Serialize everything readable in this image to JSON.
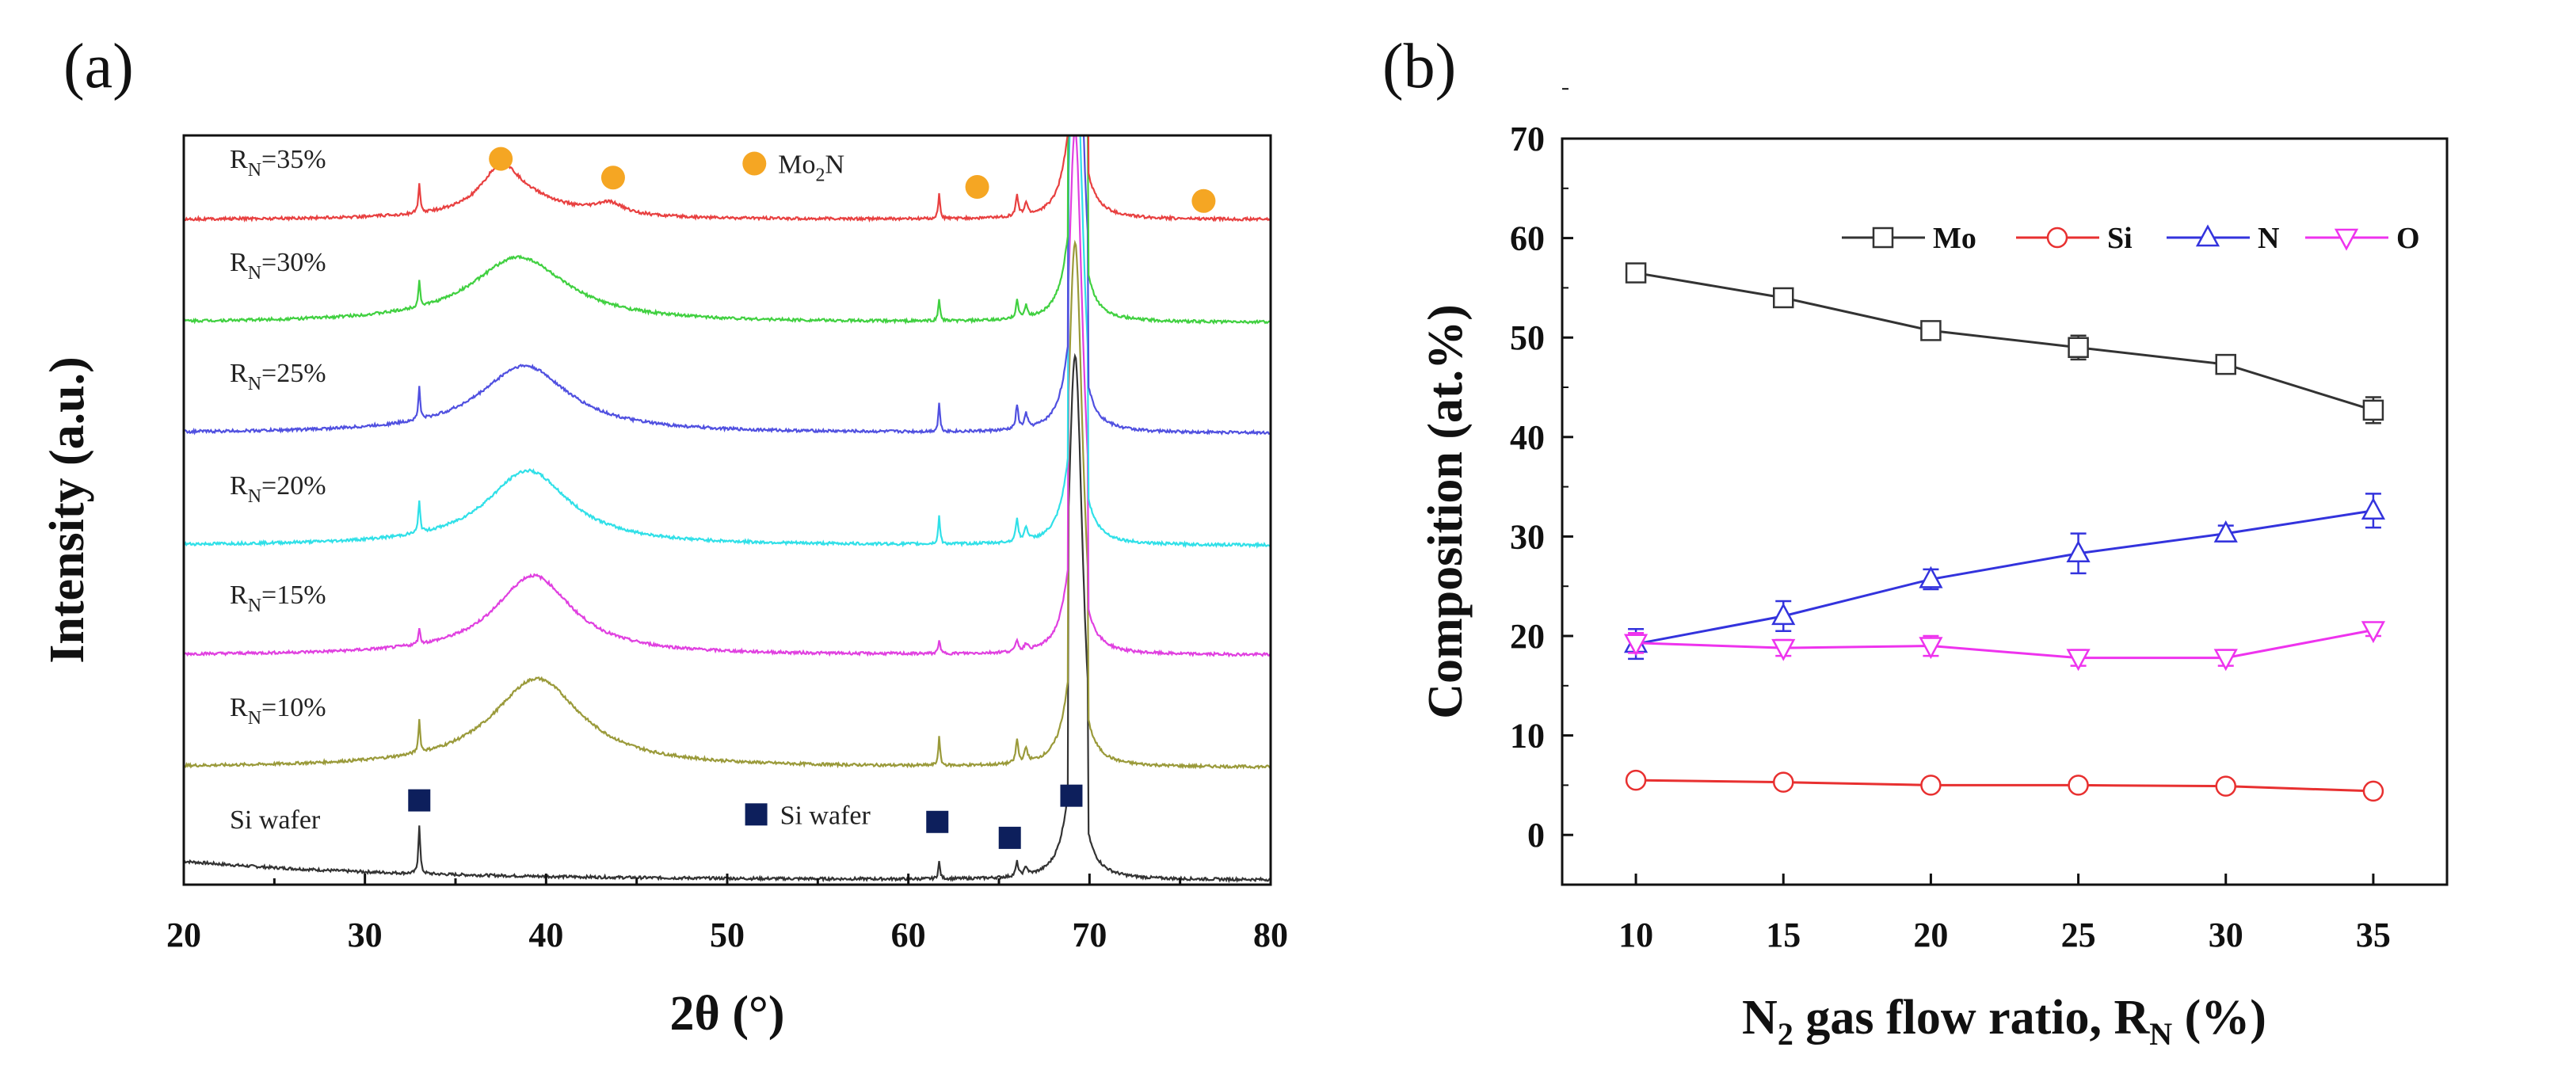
{
  "chart_data": [
    {
      "type": "line",
      "panel_label": "(a)",
      "xlabel": "2θ (°)",
      "ylabel": "Intensity (a.u.)",
      "xlim": [
        20,
        80
      ],
      "xticks": [
        "20",
        "30",
        "40",
        "50",
        "60",
        "70",
        "80"
      ],
      "xtick_values": [
        20,
        30,
        40,
        50,
        60,
        70,
        80
      ],
      "ylim": [
        0,
        8
      ],
      "substrate_peaks_2theta": [
        33.0,
        61.7,
        66.0,
        66.5,
        69.2
      ],
      "series": [
        {
          "name": "Si wafer",
          "label_main": "Si wafer",
          "label_sub": "",
          "label_tail": "",
          "color": "#333333",
          "offset": 0.05,
          "broad_peaks": [],
          "substrate_peak_scale": 0.6
        },
        {
          "name": "RN=10%",
          "label_main": "R",
          "label_sub": "N",
          "label_tail": "=10%",
          "color": "#9a9a3a",
          "offset": 1.25,
          "broad_peaks": [
            {
              "center": 39.5,
              "height": 0.95,
              "width": 3.0
            }
          ],
          "substrate_peak_scale": 1
        },
        {
          "name": "RN=15%",
          "label_main": "R",
          "label_sub": "N",
          "label_tail": "=15%",
          "color": "#e040e0",
          "offset": 2.45,
          "broad_peaks": [
            {
              "center": 39.3,
              "height": 0.85,
              "width": 2.6
            }
          ],
          "substrate_peak_scale": 0.5
        },
        {
          "name": "RN=20%",
          "label_main": "R",
          "label_sub": "N",
          "label_tail": "=20%",
          "color": "#30e0e8",
          "offset": 3.62,
          "broad_peaks": [
            {
              "center": 39.0,
              "height": 0.8,
              "width": 2.8
            }
          ],
          "substrate_peak_scale": 1
        },
        {
          "name": "RN=25%",
          "label_main": "R",
          "label_sub": "N",
          "label_tail": "=25%",
          "color": "#5050e0",
          "offset": 4.82,
          "broad_peaks": [
            {
              "center": 38.8,
              "height": 0.72,
              "width": 3.0
            }
          ],
          "substrate_peak_scale": 1
        },
        {
          "name": "RN=30%",
          "label_main": "R",
          "label_sub": "N",
          "label_tail": "=30%",
          "color": "#40d040",
          "offset": 6.0,
          "broad_peaks": [
            {
              "center": 38.5,
              "height": 0.7,
              "width": 3.2
            }
          ],
          "substrate_peak_scale": 0.8
        },
        {
          "name": "RN=35%",
          "label_main": "R",
          "label_sub": "N",
          "label_tail": "=35%",
          "color": "#e84040",
          "offset": 7.1,
          "broad_peaks": [
            {
              "center": 37.5,
              "height": 0.4,
              "width": 1.2
            },
            {
              "center": 38.5,
              "height": 0.22,
              "width": 3.0
            },
            {
              "center": 43.5,
              "height": 0.12,
              "width": 1.0
            }
          ],
          "substrate_peak_scale": 0.9
        }
      ],
      "markers": {
        "mo2n": {
          "label_main": "Mo",
          "label_sub": "2",
          "label_tail": "N",
          "color": "#f5a623",
          "positions_2theta": [
            37.5,
            43.7,
            63.8,
            76.3
          ],
          "heights": [
            7.75,
            7.55,
            7.45,
            7.3
          ],
          "legend_at": [
            51.5,
            7.7
          ]
        },
        "si": {
          "label": "Si wafer",
          "color": "#0d1f5c",
          "positions_2theta": [
            33.0,
            61.6,
            65.6,
            69.0
          ],
          "heights": [
            0.9,
            0.67,
            0.5,
            0.95
          ],
          "legend_at": [
            51.6,
            0.75
          ]
        }
      }
    },
    {
      "type": "line",
      "panel_label": "(b)",
      "xlabel_main": "N",
      "xlabel_sub": "2",
      "xlabel_mid": " gas flow ratio, R",
      "xlabel_sub2": "N",
      "xlabel_tail": " (%)",
      "ylabel": "Composition (at.%)",
      "xlim": [
        7.5,
        37.5
      ],
      "ylim": [
        -5,
        70
      ],
      "x": [
        10,
        15,
        20,
        25,
        30,
        35
      ],
      "xticks": [
        "10",
        "15",
        "20",
        "25",
        "30",
        "35"
      ],
      "yticks": [
        "0",
        "10",
        "20",
        "30",
        "40",
        "50",
        "60",
        "70"
      ],
      "ytick_values": [
        0,
        10,
        20,
        30,
        40,
        50,
        60,
        70
      ],
      "legend_position": "top-right",
      "series": [
        {
          "name": "Mo",
          "color": "#333333",
          "marker": "square",
          "values": [
            56.5,
            54.0,
            50.7,
            49.0,
            47.3,
            42.7
          ],
          "errors": [
            0.5,
            0.5,
            0.6,
            1.2,
            0.6,
            1.3
          ]
        },
        {
          "name": "Si",
          "color": "#e83030",
          "marker": "circle",
          "values": [
            5.5,
            5.3,
            5.0,
            5.0,
            4.9,
            4.4
          ],
          "errors": [
            0.4,
            0.4,
            0.4,
            0.4,
            0.4,
            0.4
          ]
        },
        {
          "name": "N",
          "color": "#3333dd",
          "marker": "triangle-up",
          "values": [
            19.2,
            22.0,
            25.7,
            28.3,
            30.3,
            32.6
          ],
          "errors": [
            1.5,
            1.5,
            1.0,
            2.0,
            0.8,
            1.7
          ]
        },
        {
          "name": "O",
          "color": "#ee33ee",
          "marker": "triangle-down",
          "values": [
            19.3,
            18.8,
            19.0,
            17.8,
            17.8,
            20.6
          ],
          "errors": [
            1.0,
            0.8,
            1.0,
            0.8,
            0.8,
            0.6
          ]
        }
      ]
    }
  ]
}
